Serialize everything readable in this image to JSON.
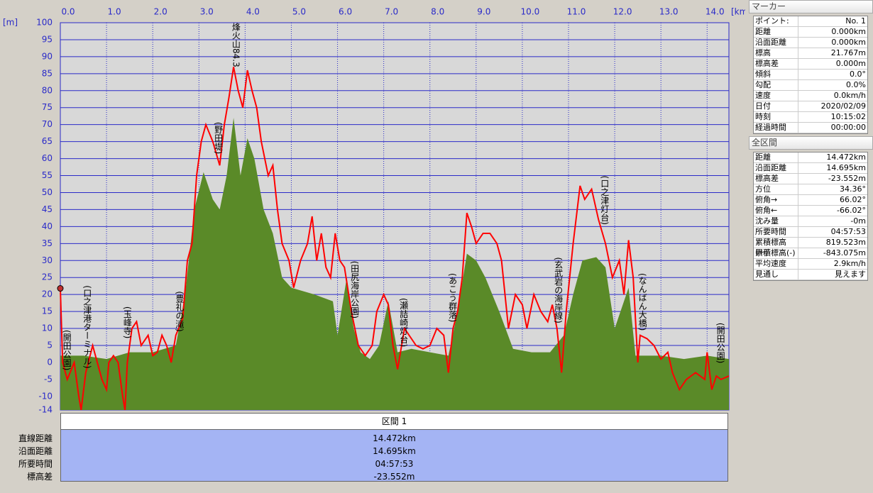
{
  "chart_data": {
    "type": "line",
    "x_unit": "[km]",
    "y_unit": "[m]",
    "xlim": [
      0,
      14.472
    ],
    "ylim": [
      -14,
      100
    ],
    "grid": true,
    "xticks": [
      {
        "value": 0,
        "label": "0.0"
      },
      {
        "value": 1,
        "label": "1.0"
      },
      {
        "value": 2,
        "label": "2.0"
      },
      {
        "value": 3,
        "label": "3.0"
      },
      {
        "value": 4,
        "label": "4.0"
      },
      {
        "value": 5,
        "label": "5.0"
      },
      {
        "value": 6,
        "label": "6.0"
      },
      {
        "value": 7,
        "label": "7.0"
      },
      {
        "value": 8,
        "label": "8.0"
      },
      {
        "value": 9,
        "label": "9.0"
      },
      {
        "value": 10,
        "label": "10.0"
      },
      {
        "value": 11,
        "label": "11.0"
      },
      {
        "value": 12,
        "label": "12.0"
      },
      {
        "value": 13,
        "label": "13.0"
      },
      {
        "value": 14,
        "label": "14.0"
      }
    ],
    "yticks": [
      100,
      95,
      90,
      85,
      80,
      75,
      70,
      65,
      60,
      55,
      50,
      45,
      40,
      35,
      30,
      25,
      20,
      15,
      10,
      5,
      0,
      -5,
      -10,
      -14
    ],
    "series": [
      {
        "color": "#5a8a28",
        "fill": true,
        "x": [
          0,
          0.5,
          1,
          1.5,
          2,
          2.5,
          2.7,
          2.9,
          3.1,
          3.3,
          3.45,
          3.6,
          3.75,
          3.9,
          4.05,
          4.2,
          4.4,
          4.6,
          4.8,
          5.0,
          5.5,
          5.9,
          6.0,
          6.2,
          6.35,
          6.5,
          6.7,
          6.9,
          7.1,
          7.3,
          7.6,
          8.0,
          8.4,
          8.6,
          8.8,
          9.0,
          9.2,
          9.5,
          9.8,
          10.2,
          10.6,
          10.9,
          11.1,
          11.3,
          11.6,
          11.8,
          12.0,
          12.3,
          12.45,
          12.7,
          13.0,
          13.5,
          14.0,
          14.472
        ],
        "values": [
          2,
          2,
          1,
          3,
          3,
          5,
          20,
          45,
          56,
          48,
          45,
          55,
          72,
          55,
          66,
          60,
          45,
          38,
          25,
          22,
          20,
          18,
          8,
          25,
          10,
          3,
          1,
          5,
          18,
          3,
          4,
          3,
          2,
          15,
          32,
          30,
          25,
          15,
          4,
          3,
          3,
          8,
          20,
          30,
          31,
          28,
          10,
          22,
          2,
          2,
          2,
          1,
          2,
          1
        ]
      },
      {
        "color": "#ff0000",
        "fill": false,
        "x": [
          0,
          0.05,
          0.15,
          0.3,
          0.4,
          0.45,
          0.55,
          0.7,
          0.8,
          0.9,
          1.0,
          1.05,
          1.15,
          1.25,
          1.35,
          1.4,
          1.45,
          1.55,
          1.65,
          1.75,
          1.9,
          2.0,
          2.1,
          2.2,
          2.3,
          2.4,
          2.5,
          2.65,
          2.75,
          2.85,
          2.95,
          3.05,
          3.15,
          3.3,
          3.45,
          3.55,
          3.65,
          3.75,
          3.85,
          3.95,
          4.05,
          4.15,
          4.25,
          4.35,
          4.5,
          4.6,
          4.7,
          4.8,
          4.95,
          5.05,
          5.2,
          5.35,
          5.45,
          5.55,
          5.65,
          5.75,
          5.85,
          5.95,
          6.05,
          6.15,
          6.3,
          6.45,
          6.6,
          6.75,
          6.85,
          7.0,
          7.1,
          7.2,
          7.3,
          7.45,
          7.55,
          7.7,
          7.85,
          8.0,
          8.15,
          8.3,
          8.4,
          8.5,
          8.6,
          8.7,
          8.8,
          8.9,
          9.0,
          9.15,
          9.3,
          9.45,
          9.55,
          9.7,
          9.85,
          10.0,
          10.1,
          10.25,
          10.4,
          10.55,
          10.65,
          10.75,
          10.85,
          10.95,
          11.1,
          11.25,
          11.35,
          11.5,
          11.65,
          11.8,
          11.95,
          12.1,
          12.2,
          12.3,
          12.4,
          12.5,
          12.55,
          12.7,
          12.85,
          13.0,
          13.15,
          13.25,
          13.4,
          13.55,
          13.75,
          13.85,
          13.95,
          14.0,
          14.1,
          14.2,
          14.3,
          14.472
        ],
        "values": [
          21.8,
          0,
          -5,
          0,
          -10,
          -14,
          -3,
          5,
          0,
          -5,
          -8,
          0,
          2,
          0,
          -10,
          -14,
          0,
          10,
          12,
          5,
          8,
          2,
          3,
          8,
          5,
          0,
          8,
          13,
          30,
          35,
          55,
          65,
          70,
          65,
          58,
          70,
          78,
          87,
          80,
          75,
          86,
          80,
          75,
          65,
          55,
          58,
          45,
          35,
          30,
          22,
          30,
          35,
          43,
          30,
          38,
          28,
          25,
          38,
          30,
          28,
          15,
          5,
          2,
          5,
          15,
          20,
          17,
          5,
          -2,
          10,
          8,
          5,
          4,
          5,
          10,
          8,
          -3,
          10,
          15,
          25,
          44,
          40,
          35,
          38,
          38,
          35,
          30,
          10,
          20,
          17,
          10,
          20,
          15,
          12,
          17,
          10,
          -3,
          15,
          35,
          52,
          48,
          51,
          42,
          35,
          25,
          30,
          20,
          36,
          25,
          0,
          8,
          7,
          5,
          1,
          3,
          -3,
          -8,
          -5,
          -3,
          -4,
          -5,
          3,
          -8,
          -4,
          -5,
          -4
        ]
      }
    ],
    "annotations": [
      {
        "text": "(開田公園)",
        "x": 0.14,
        "y": 9.6
      },
      {
        "text": "(口之津港ターミナル)",
        "x": 0.58,
        "y": 22.7
      },
      {
        "text": "(玉峰寺)",
        "x": 1.45,
        "y": 16.5
      },
      {
        "text": "(豊礼の滝)",
        "x": 2.58,
        "y": 21
      },
      {
        "text": "(野田堤)",
        "x": 3.42,
        "y": 70.8
      },
      {
        "text": "烽火山84.3",
        "x": 3.8,
        "y": 100
      },
      {
        "text": "(田尻海岸公園)",
        "x": 6.37,
        "y": 29.9
      },
      {
        "text": "(瀬詰崎灯台)",
        "x": 7.43,
        "y": 19
      },
      {
        "text": "(あこう群落)",
        "x": 8.49,
        "y": 26.3
      },
      {
        "text": "(玄武岩の海岸線)",
        "x": 10.78,
        "y": 31
      },
      {
        "text": "(口之津灯台)",
        "x": 11.78,
        "y": 55
      },
      {
        "text": "(なんばん大橋)",
        "x": 12.6,
        "y": 26.3
      },
      {
        "text": "(開田公園)",
        "x": 14.29,
        "y": 11.7
      }
    ]
  },
  "marker_panel": {
    "title": "マーカー",
    "rows": [
      [
        "ポイント:",
        "No. 1"
      ],
      [
        "距離",
        "0.000km"
      ],
      [
        "沿面距離",
        "0.000km"
      ],
      [
        "標高",
        "21.767m"
      ],
      [
        "標高差",
        "0.000m"
      ],
      [
        "傾斜",
        "0.0°"
      ],
      [
        "勾配",
        "0.0%"
      ],
      [
        "速度",
        "0.0km/h"
      ],
      [
        "日付",
        "2020/02/09"
      ],
      [
        "時刻",
        "10:15:02"
      ],
      [
        "経過時間",
        "00:00:00"
      ]
    ]
  },
  "total_panel": {
    "title": "全区間",
    "rows": [
      [
        "距離",
        "14.472km"
      ],
      [
        "沿面距離",
        "14.695km"
      ],
      [
        "標高差",
        "-23.552m"
      ],
      [
        "方位",
        "34.36°"
      ],
      [
        "俯角→",
        "66.02°"
      ],
      [
        "俯角←",
        "-66.02°"
      ],
      [
        "沈み量",
        "-0m"
      ],
      [
        "所要時間",
        "04:57:53"
      ],
      [
        "累積標高(+)",
        "819.523m"
      ],
      [
        "累積標高(-)",
        "-843.075m"
      ],
      [
        "平均速度",
        "2.9km/h"
      ],
      [
        "見通し",
        "見えます"
      ]
    ]
  },
  "section_table": {
    "header": "区間 1",
    "rows": [
      [
        "直線距離",
        "14.472km"
      ],
      [
        "沿面距離",
        "14.695km"
      ],
      [
        "所要時間",
        "04:57:53"
      ],
      [
        "標高差",
        "-23.552m"
      ]
    ]
  }
}
